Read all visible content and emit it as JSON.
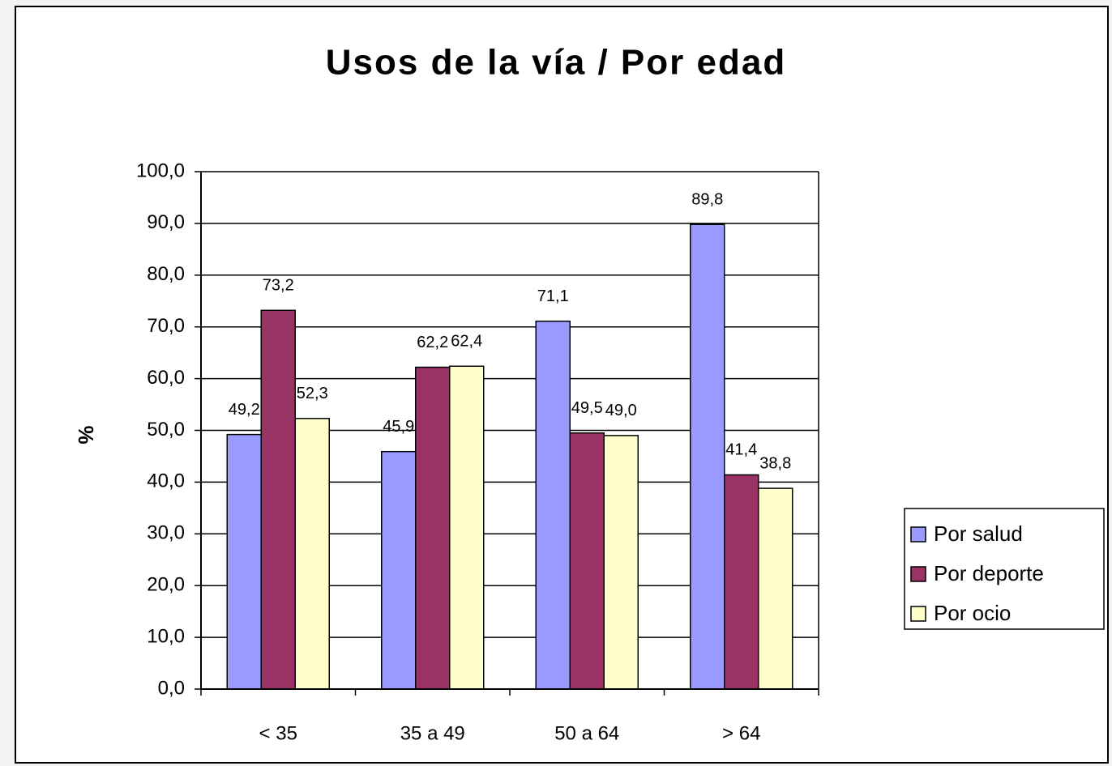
{
  "chart_data": {
    "type": "bar",
    "title": "Usos de la vía / Por edad",
    "y_label": "%",
    "categories": [
      "< 35",
      "35 a 49",
      "50 a 64",
      "> 64"
    ],
    "series": [
      {
        "name": "Por salud",
        "color": "#9999ff",
        "values": [
          49.2,
          45.9,
          71.1,
          89.8
        ],
        "value_labels": [
          "49,2",
          "45,9",
          "71,1",
          "89,8"
        ]
      },
      {
        "name": "Por deporte",
        "color": "#993366",
        "values": [
          73.2,
          62.2,
          49.5,
          41.4
        ],
        "value_labels": [
          "73,2",
          "62,2",
          "49,5",
          "41,4"
        ]
      },
      {
        "name": "Por ocio",
        "color": "#ffffcc",
        "values": [
          52.3,
          62.4,
          49.0,
          38.8
        ],
        "value_labels": [
          "52,3",
          "62,4",
          "49,0",
          "38,8"
        ]
      }
    ],
    "ylim": [
      0,
      100
    ],
    "yticks": [
      {
        "value": 0,
        "label": "0,0"
      },
      {
        "value": 10,
        "label": "10,0"
      },
      {
        "value": 20,
        "label": "20,0"
      },
      {
        "value": 30,
        "label": "30,0"
      },
      {
        "value": 40,
        "label": "40,0"
      },
      {
        "value": 50,
        "label": "50,0"
      },
      {
        "value": 60,
        "label": "60,0"
      },
      {
        "value": 70,
        "label": "70,0"
      },
      {
        "value": 80,
        "label": "80,0"
      },
      {
        "value": 90,
        "label": "90,0"
      },
      {
        "value": 100,
        "label": "100,0"
      }
    ],
    "grid": true,
    "legend": "right"
  }
}
